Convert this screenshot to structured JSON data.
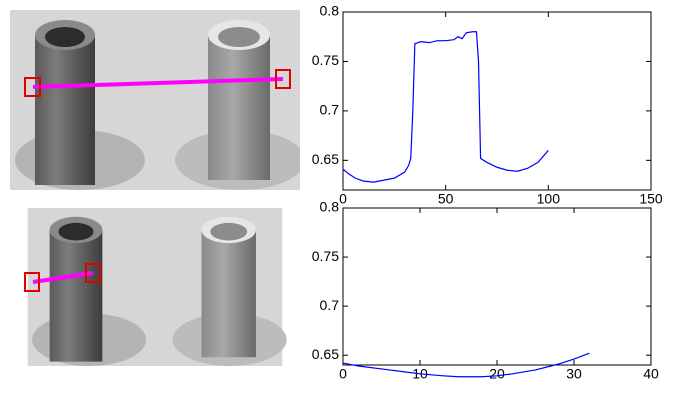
{
  "chart_data": [
    {
      "type": "line",
      "color": "#0000ff",
      "x": [
        0,
        3,
        6,
        10,
        15,
        20,
        25,
        30,
        32,
        33,
        34,
        35,
        38,
        42,
        46,
        50,
        54,
        56,
        58,
        60,
        63,
        65,
        66,
        67,
        70,
        75,
        80,
        85,
        90,
        95,
        100
      ],
      "values": [
        0.641,
        0.636,
        0.632,
        0.629,
        0.628,
        0.63,
        0.632,
        0.638,
        0.645,
        0.652,
        0.7,
        0.768,
        0.77,
        0.769,
        0.771,
        0.771,
        0.772,
        0.775,
        0.773,
        0.779,
        0.78,
        0.78,
        0.75,
        0.652,
        0.648,
        0.643,
        0.64,
        0.639,
        0.642,
        0.648,
        0.66
      ],
      "xlim": [
        0,
        150
      ],
      "xticks": [
        0,
        50,
        100,
        150
      ],
      "ylim": [
        0.62,
        0.8
      ],
      "yticks": [
        0.65,
        0.7,
        0.75,
        0.8
      ]
    },
    {
      "type": "line",
      "color": "#0000ff",
      "x": [
        0,
        2,
        5,
        8,
        10,
        13,
        15,
        18,
        20,
        22,
        25,
        27,
        28,
        30,
        32
      ],
      "values": [
        0.642,
        0.639,
        0.636,
        0.633,
        0.631,
        0.629,
        0.628,
        0.628,
        0.629,
        0.631,
        0.635,
        0.639,
        0.641,
        0.646,
        0.652
      ],
      "xlim": [
        0,
        40
      ],
      "xticks": [
        0,
        10,
        20,
        30,
        40
      ],
      "ylim": [
        0.64,
        0.8
      ],
      "yticks": [
        0.65,
        0.7,
        0.75,
        0.8
      ]
    }
  ]
}
